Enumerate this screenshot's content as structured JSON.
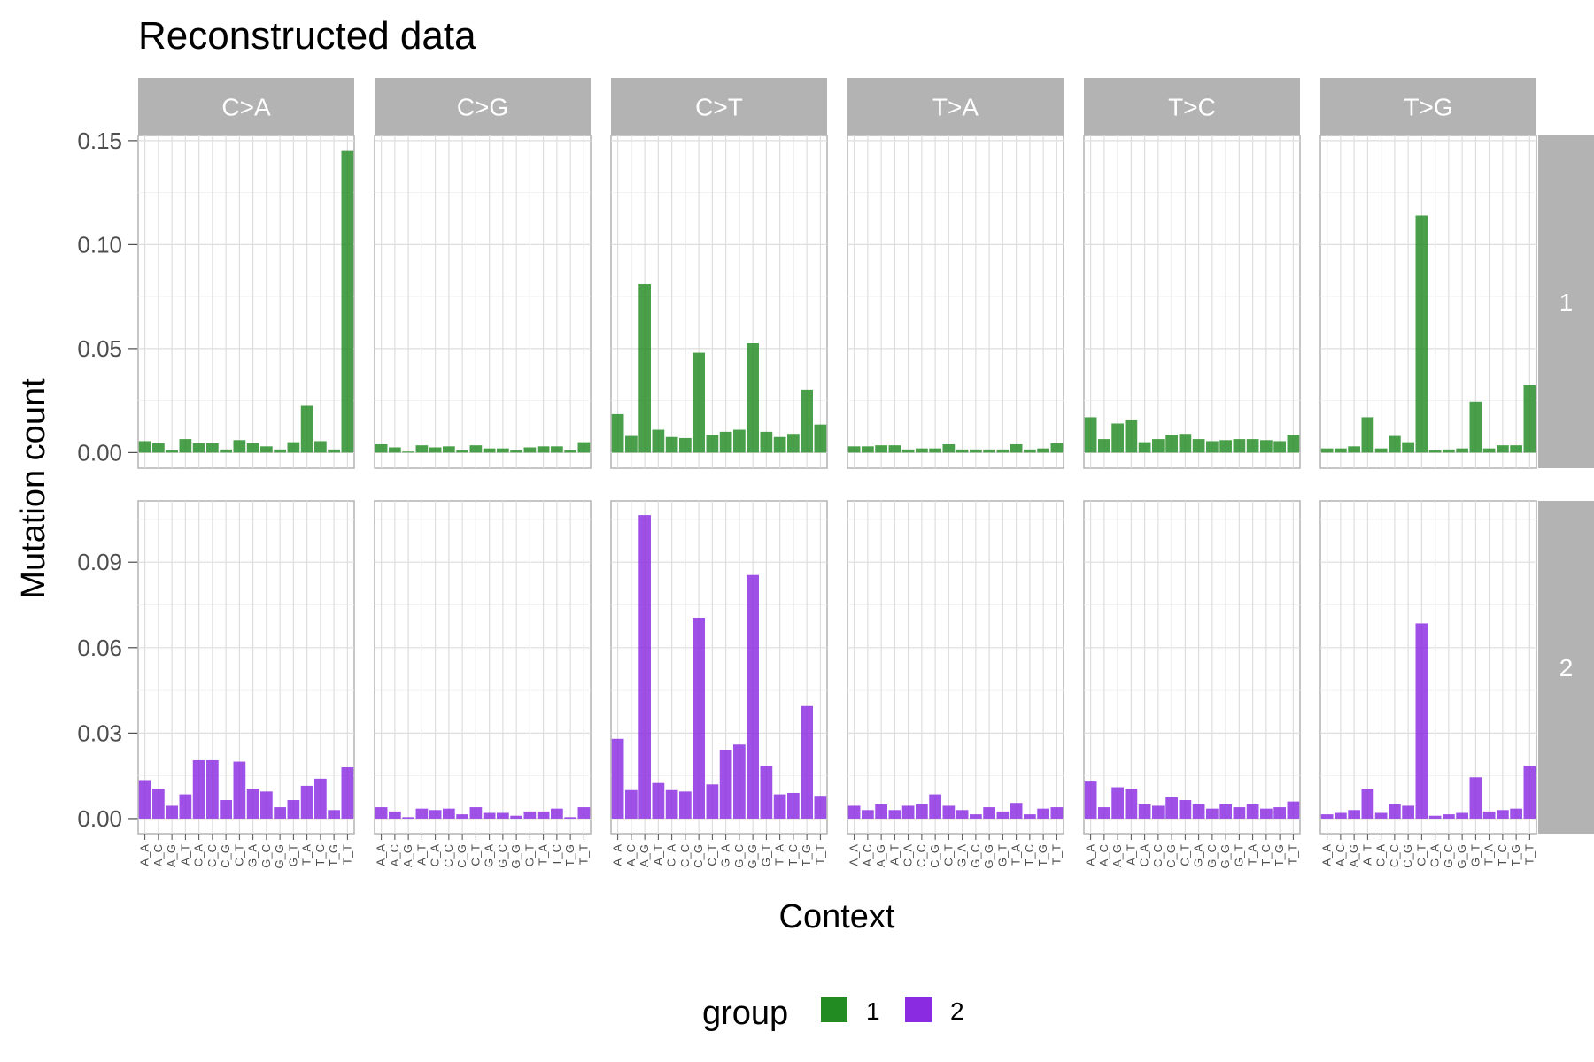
{
  "chart_data": {
    "type": "bar",
    "title": "Reconstructed data",
    "xlabel": "Context",
    "ylabel": "Mutation count",
    "legend": {
      "title": "group",
      "position": "bottom",
      "entries": [
        {
          "label": "1",
          "color": "#228B22"
        },
        {
          "label": "2",
          "color": "#8A2BE2"
        }
      ]
    },
    "facet_columns": [
      "C>A",
      "C>G",
      "C>T",
      "T>A",
      "T>C",
      "T>G"
    ],
    "facet_rows": [
      "1",
      "2"
    ],
    "categories": [
      "A_A",
      "A_C",
      "A_G",
      "A_T",
      "C_A",
      "C_C",
      "C_G",
      "C_T",
      "G_A",
      "G_C",
      "G_G",
      "G_T",
      "T_A",
      "T_C",
      "T_G",
      "T_T"
    ],
    "grid": true,
    "rows": [
      {
        "group": "1",
        "color": "#228B22",
        "ylim": [
          -0.0075,
          0.1525
        ],
        "yticks": [
          0.0,
          0.05,
          0.1,
          0.15
        ],
        "ytick_labels": [
          "0.00",
          "0.05",
          "0.10",
          "0.15"
        ],
        "series": [
          {
            "name": "C>A",
            "values": [
              0.0055,
              0.0045,
              0.001,
              0.0065,
              0.0045,
              0.0045,
              0.0015,
              0.006,
              0.0045,
              0.003,
              0.0015,
              0.005,
              0.0225,
              0.0055,
              0.0015,
              0.145
            ]
          },
          {
            "name": "C>G",
            "values": [
              0.004,
              0.0025,
              0.0005,
              0.0035,
              0.0025,
              0.003,
              0.001,
              0.0035,
              0.002,
              0.002,
              0.001,
              0.0025,
              0.003,
              0.003,
              0.001,
              0.005
            ]
          },
          {
            "name": "C>T",
            "values": [
              0.0185,
              0.008,
              0.081,
              0.011,
              0.0075,
              0.007,
              0.048,
              0.0085,
              0.01,
              0.011,
              0.0525,
              0.01,
              0.0075,
              0.009,
              0.03,
              0.0135
            ]
          },
          {
            "name": "T>A",
            "values": [
              0.003,
              0.003,
              0.0035,
              0.0035,
              0.0015,
              0.002,
              0.002,
              0.004,
              0.0015,
              0.0015,
              0.0015,
              0.0015,
              0.004,
              0.0015,
              0.002,
              0.0045
            ]
          },
          {
            "name": "T>C",
            "values": [
              0.017,
              0.0065,
              0.014,
              0.0155,
              0.005,
              0.0065,
              0.0085,
              0.009,
              0.0065,
              0.0055,
              0.006,
              0.0065,
              0.0065,
              0.006,
              0.0055,
              0.0085
            ]
          },
          {
            "name": "T>G",
            "values": [
              0.002,
              0.002,
              0.003,
              0.017,
              0.002,
              0.008,
              0.005,
              0.114,
              0.001,
              0.0015,
              0.002,
              0.0245,
              0.002,
              0.0035,
              0.0035,
              0.0325
            ]
          }
        ]
      },
      {
        "group": "2",
        "color": "#8A2BE2",
        "ylim": [
          -0.0053,
          0.1115
        ],
        "yticks": [
          0.0,
          0.03,
          0.06,
          0.09
        ],
        "ytick_labels": [
          "0.00",
          "0.03",
          "0.06",
          "0.09"
        ],
        "series": [
          {
            "name": "C>A",
            "values": [
              0.0135,
              0.0105,
              0.0045,
              0.0085,
              0.0205,
              0.0205,
              0.0065,
              0.02,
              0.0105,
              0.0095,
              0.004,
              0.0065,
              0.0115,
              0.014,
              0.003,
              0.018
            ]
          },
          {
            "name": "C>G",
            "values": [
              0.004,
              0.0025,
              0.0005,
              0.0035,
              0.003,
              0.0035,
              0.0015,
              0.004,
              0.002,
              0.002,
              0.001,
              0.0025,
              0.0025,
              0.0035,
              0.0005,
              0.004
            ]
          },
          {
            "name": "C>T",
            "values": [
              0.028,
              0.01,
              0.1065,
              0.0125,
              0.01,
              0.0095,
              0.0705,
              0.012,
              0.024,
              0.026,
              0.0855,
              0.0185,
              0.0085,
              0.009,
              0.0395,
              0.008
            ]
          },
          {
            "name": "T>A",
            "values": [
              0.0045,
              0.003,
              0.005,
              0.003,
              0.0045,
              0.005,
              0.0085,
              0.0045,
              0.003,
              0.0015,
              0.004,
              0.0025,
              0.0055,
              0.0015,
              0.0035,
              0.004
            ]
          },
          {
            "name": "T>C",
            "values": [
              0.013,
              0.004,
              0.011,
              0.0105,
              0.005,
              0.0045,
              0.0075,
              0.0065,
              0.005,
              0.0035,
              0.005,
              0.004,
              0.005,
              0.0035,
              0.004,
              0.006
            ]
          },
          {
            "name": "T>G",
            "values": [
              0.0015,
              0.002,
              0.003,
              0.0105,
              0.002,
              0.005,
              0.0045,
              0.0685,
              0.001,
              0.0015,
              0.002,
              0.0145,
              0.0025,
              0.003,
              0.0035,
              0.0185
            ]
          }
        ]
      }
    ]
  }
}
